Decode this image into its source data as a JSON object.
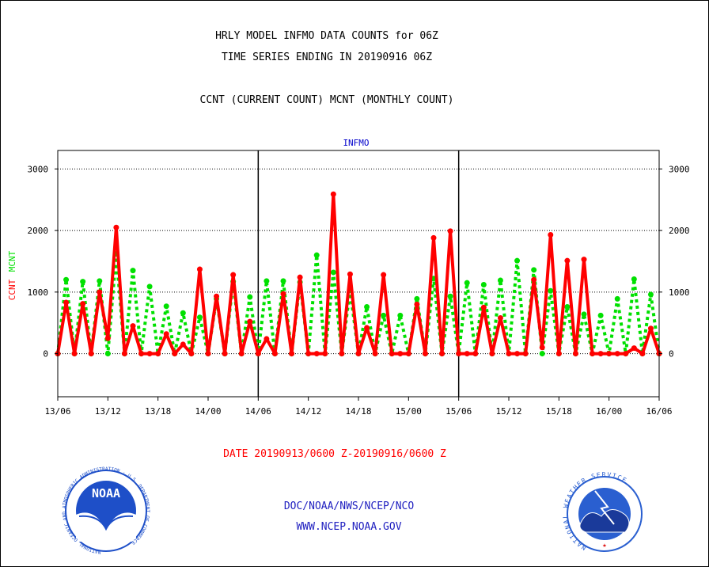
{
  "header": {
    "title_line1": "HRLY MODEL INFMO DATA COUNTS for 06Z",
    "title_line2": "TIME SERIES ENDING IN 20190916 06Z",
    "subtitle": "CCNT (CURRENT COUNT) MCNT (MONTHLY COUNT)"
  },
  "footer": {
    "date_range": "DATE 20190913/0600 Z-20190916/0600 Z",
    "org": "DOC/NOAA/NWS/NCEP/NCO",
    "url": "WWW.NCEP.NOAA.GOV",
    "noaa_logo_text": "NOAA",
    "noaa_seal_ring": "NATIONAL OCEANIC AND ATMOSPHERIC ADMINISTRATION · U.S. DEPARTMENT OF COMMERCE",
    "nws_seal_ring": "NATIONAL WEATHER SERVICE"
  },
  "colors": {
    "ccnt": "#ff0000",
    "mcnt": "#00e000",
    "title": "#000000",
    "plot_label": "#0000cc",
    "footer_text": "#2020c0",
    "noaa_blue": "#1e4fc8",
    "nws_blue": "#2a5fd0"
  },
  "chart_data": {
    "type": "line",
    "title": "INFMO",
    "ylabel_series": [
      "CCNT",
      "MCNT"
    ],
    "ylim": [
      -700,
      3300
    ],
    "y_ticks": [
      0,
      1000,
      2000,
      3000
    ],
    "grid": true,
    "x_tick_labels": [
      "13/06",
      "13/12",
      "13/18",
      "14/00",
      "14/06",
      "14/12",
      "14/18",
      "15/00",
      "15/06",
      "15/12",
      "15/18",
      "16/00",
      "16/06"
    ],
    "x_hours": [
      0,
      1,
      2,
      3,
      4,
      5,
      6,
      7,
      8,
      9,
      10,
      11,
      12,
      13,
      14,
      15,
      16,
      17,
      18,
      19,
      20,
      21,
      22,
      23,
      24,
      25,
      26,
      27,
      28,
      29,
      30,
      31,
      32,
      33,
      34,
      35,
      36,
      37,
      38,
      39,
      40,
      41,
      42,
      43,
      44,
      45,
      46,
      47,
      48,
      49,
      50,
      51,
      52,
      53,
      54,
      55,
      56,
      57,
      58,
      59,
      60,
      61,
      62,
      63,
      64,
      65,
      66,
      67,
      68,
      69,
      70,
      71,
      72
    ],
    "series": [
      {
        "name": "CCNT",
        "values": [
          0,
          830,
          0,
          810,
          0,
          1000,
          250,
          2050,
          0,
          450,
          0,
          0,
          0,
          320,
          0,
          150,
          0,
          1370,
          0,
          930,
          0,
          1280,
          0,
          520,
          0,
          240,
          0,
          970,
          0,
          1240,
          0,
          0,
          0,
          2590,
          0,
          1290,
          0,
          420,
          0,
          1280,
          0,
          0,
          0,
          800,
          0,
          1880,
          0,
          1990,
          0,
          0,
          0,
          750,
          0,
          580,
          0,
          0,
          0,
          1200,
          100,
          1930,
          0,
          1510,
          0,
          1530,
          0,
          0,
          0,
          0,
          0,
          90,
          0,
          410,
          0
        ]
      },
      {
        "name": "MCNT",
        "values": [
          0,
          1200,
          0,
          1170,
          0,
          1180,
          0,
          1620,
          0,
          1350,
          0,
          1090,
          0,
          770,
          0,
          660,
          0,
          590,
          0,
          890,
          0,
          1170,
          0,
          920,
          0,
          1180,
          0,
          1180,
          0,
          1160,
          0,
          1600,
          0,
          1320,
          0,
          1030,
          0,
          760,
          0,
          620,
          0,
          620,
          0,
          890,
          0,
          1220,
          0,
          930,
          0,
          1150,
          0,
          1120,
          0,
          1190,
          0,
          1510,
          0,
          1360,
          0,
          1020,
          0,
          760,
          0,
          640,
          0,
          620,
          0,
          890,
          0,
          1210,
          0,
          960,
          0
        ]
      }
    ]
  }
}
